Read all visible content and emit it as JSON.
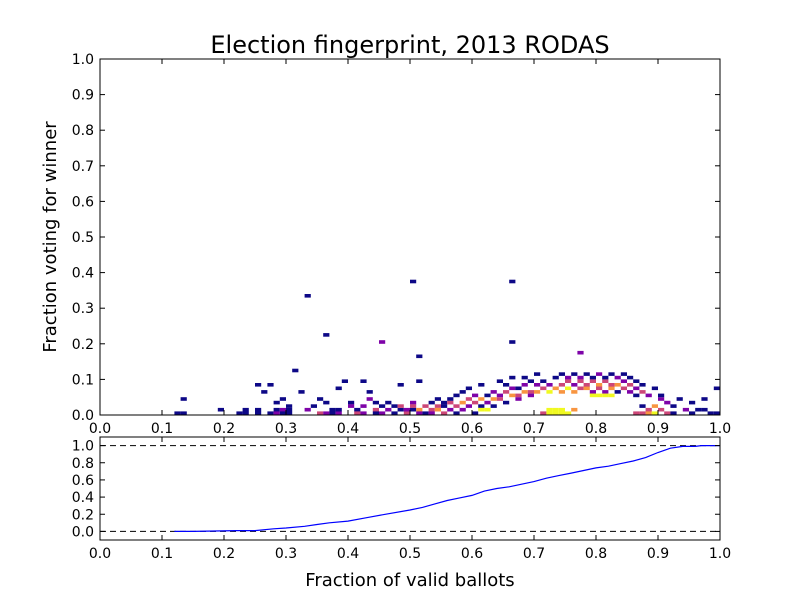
{
  "chart_data": [
    {
      "type": "heatmap",
      "title": "Election fingerprint, 2013 RODAS",
      "xlabel": "",
      "ylabel": "Fraction voting for winner",
      "xlim": [
        0.0,
        1.0
      ],
      "ylim": [
        0.0,
        1.0
      ],
      "x_ticks": [
        "0.0",
        "0.1",
        "0.2",
        "0.3",
        "0.4",
        "0.5",
        "0.6",
        "0.7",
        "0.8",
        "0.9",
        "1.0"
      ],
      "y_ticks": [
        "0.0",
        "0.1",
        "0.2",
        "0.3",
        "0.4",
        "0.5",
        "0.6",
        "0.7",
        "0.8",
        "0.9",
        "1.0"
      ],
      "colormap": [
        "#0d0887",
        "#7e03a8",
        "#cc4778",
        "#f89540",
        "#f0f921"
      ],
      "bin_width": 0.01,
      "cells": [
        [
          0.33,
          0.33,
          1
        ],
        [
          0.5,
          0.37,
          1
        ],
        [
          0.66,
          0.37,
          1
        ],
        [
          0.36,
          0.22,
          1
        ],
        [
          0.45,
          0.2,
          2
        ],
        [
          0.66,
          0.2,
          1
        ],
        [
          0.31,
          0.12,
          1
        ],
        [
          0.51,
          0.16,
          1
        ],
        [
          0.77,
          0.17,
          2
        ],
        [
          0.13,
          0.04,
          1
        ],
        [
          0.19,
          0.01,
          1
        ],
        [
          0.12,
          0.0,
          1
        ],
        [
          0.13,
          0.0,
          1
        ],
        [
          0.22,
          0.0,
          1
        ],
        [
          0.23,
          0.0,
          1
        ],
        [
          0.23,
          0.01,
          1
        ],
        [
          0.25,
          0.08,
          1
        ],
        [
          0.27,
          0.08,
          1
        ],
        [
          0.26,
          0.06,
          1
        ],
        [
          0.25,
          0.01,
          1
        ],
        [
          0.25,
          0.0,
          1
        ],
        [
          0.28,
          0.03,
          1
        ],
        [
          0.29,
          0.04,
          1
        ],
        [
          0.28,
          0.01,
          1
        ],
        [
          0.29,
          0.01,
          2
        ],
        [
          0.3,
          0.01,
          1
        ],
        [
          0.27,
          0.0,
          1
        ],
        [
          0.28,
          0.0,
          2
        ],
        [
          0.29,
          0.0,
          1
        ],
        [
          0.3,
          0.0,
          1
        ],
        [
          0.3,
          0.02,
          1
        ],
        [
          0.32,
          0.06,
          1
        ],
        [
          0.33,
          0.01,
          2
        ],
        [
          0.34,
          0.02,
          1
        ],
        [
          0.35,
          0.0,
          3
        ],
        [
          0.36,
          0.0,
          2
        ],
        [
          0.36,
          0.03,
          1
        ],
        [
          0.35,
          0.04,
          1
        ],
        [
          0.37,
          0.01,
          1
        ],
        [
          0.37,
          0.0,
          1
        ],
        [
          0.38,
          0.0,
          2
        ],
        [
          0.38,
          0.01,
          1
        ],
        [
          0.38,
          0.07,
          1
        ],
        [
          0.39,
          0.09,
          1
        ],
        [
          0.4,
          0.03,
          1
        ],
        [
          0.4,
          0.02,
          2
        ],
        [
          0.41,
          0.01,
          1
        ],
        [
          0.41,
          0.0,
          3
        ],
        [
          0.42,
          0.0,
          2
        ],
        [
          0.42,
          0.02,
          2
        ],
        [
          0.42,
          0.09,
          1
        ],
        [
          0.43,
          0.04,
          2
        ],
        [
          0.43,
          0.06,
          1
        ],
        [
          0.44,
          0.03,
          1
        ],
        [
          0.44,
          0.01,
          3
        ],
        [
          0.44,
          0.0,
          1
        ],
        [
          0.45,
          0.02,
          1
        ],
        [
          0.45,
          0.0,
          2
        ],
        [
          0.46,
          0.01,
          2
        ],
        [
          0.46,
          0.03,
          1
        ],
        [
          0.47,
          0.02,
          1
        ],
        [
          0.47,
          0.0,
          1
        ],
        [
          0.48,
          0.01,
          1
        ],
        [
          0.48,
          0.02,
          3
        ],
        [
          0.48,
          0.08,
          1
        ],
        [
          0.49,
          0.0,
          3
        ],
        [
          0.49,
          0.01,
          2
        ],
        [
          0.5,
          0.03,
          2
        ],
        [
          0.5,
          0.02,
          3
        ],
        [
          0.5,
          0.01,
          1
        ],
        [
          0.51,
          0.01,
          4
        ],
        [
          0.51,
          0.0,
          2
        ],
        [
          0.51,
          0.09,
          1
        ],
        [
          0.52,
          0.02,
          3
        ],
        [
          0.52,
          0.0,
          1
        ],
        [
          0.53,
          0.01,
          3
        ],
        [
          0.53,
          0.03,
          1
        ],
        [
          0.53,
          0.0,
          2
        ],
        [
          0.54,
          0.02,
          3
        ],
        [
          0.54,
          0.01,
          4
        ],
        [
          0.54,
          0.04,
          1
        ],
        [
          0.55,
          0.0,
          3
        ],
        [
          0.55,
          0.02,
          1
        ],
        [
          0.55,
          0.03,
          1
        ],
        [
          0.56,
          0.01,
          2
        ],
        [
          0.56,
          0.03,
          3
        ],
        [
          0.56,
          0.04,
          1
        ],
        [
          0.57,
          0.02,
          3
        ],
        [
          0.57,
          0.0,
          1
        ],
        [
          0.57,
          0.05,
          1
        ],
        [
          0.58,
          0.03,
          4
        ],
        [
          0.58,
          0.01,
          2
        ],
        [
          0.58,
          0.06,
          1
        ],
        [
          0.59,
          0.02,
          2
        ],
        [
          0.59,
          0.04,
          3
        ],
        [
          0.59,
          0.07,
          1
        ],
        [
          0.6,
          0.03,
          3
        ],
        [
          0.6,
          0.05,
          2
        ],
        [
          0.6,
          0.0,
          1
        ],
        [
          0.61,
          0.04,
          4
        ],
        [
          0.61,
          0.02,
          1
        ],
        [
          0.61,
          0.08,
          1
        ],
        [
          0.62,
          0.01,
          5
        ],
        [
          0.62,
          0.03,
          2
        ],
        [
          0.62,
          0.05,
          1
        ],
        [
          0.63,
          0.04,
          4
        ],
        [
          0.63,
          0.06,
          2
        ],
        [
          0.63,
          0.02,
          1
        ],
        [
          0.64,
          0.04,
          3
        ],
        [
          0.64,
          0.05,
          2
        ],
        [
          0.64,
          0.09,
          1
        ],
        [
          0.65,
          0.06,
          3
        ],
        [
          0.65,
          0.03,
          1
        ],
        [
          0.65,
          0.08,
          1
        ],
        [
          0.66,
          0.05,
          4
        ],
        [
          0.66,
          0.07,
          2
        ],
        [
          0.66,
          0.1,
          1
        ],
        [
          0.67,
          0.05,
          3
        ],
        [
          0.67,
          0.04,
          2
        ],
        [
          0.67,
          0.07,
          1
        ],
        [
          0.68,
          0.06,
          4
        ],
        [
          0.68,
          0.08,
          2
        ],
        [
          0.68,
          0.1,
          1
        ],
        [
          0.69,
          0.06,
          3
        ],
        [
          0.69,
          0.05,
          2
        ],
        [
          0.69,
          0.09,
          1
        ],
        [
          0.7,
          0.06,
          4
        ],
        [
          0.7,
          0.08,
          2
        ],
        [
          0.7,
          0.11,
          1
        ],
        [
          0.71,
          0.07,
          3
        ],
        [
          0.71,
          0.0,
          3
        ],
        [
          0.71,
          0.09,
          1
        ],
        [
          0.72,
          0.06,
          5
        ],
        [
          0.72,
          0.0,
          5
        ],
        [
          0.72,
          0.08,
          2
        ],
        [
          0.73,
          0.07,
          4
        ],
        [
          0.73,
          0.0,
          5
        ],
        [
          0.73,
          0.1,
          1
        ],
        [
          0.74,
          0.06,
          4
        ],
        [
          0.74,
          0.08,
          3
        ],
        [
          0.74,
          0.11,
          1
        ],
        [
          0.75,
          0.07,
          5
        ],
        [
          0.75,
          0.09,
          3
        ],
        [
          0.75,
          0.1,
          2
        ],
        [
          0.76,
          0.06,
          4
        ],
        [
          0.76,
          0.08,
          2
        ],
        [
          0.76,
          0.11,
          1
        ],
        [
          0.77,
          0.07,
          3
        ],
        [
          0.77,
          0.1,
          2
        ],
        [
          0.77,
          0.09,
          3
        ],
        [
          0.78,
          0.07,
          4
        ],
        [
          0.78,
          0.08,
          3
        ],
        [
          0.78,
          0.11,
          1
        ],
        [
          0.79,
          0.09,
          3
        ],
        [
          0.79,
          0.06,
          2
        ],
        [
          0.79,
          0.1,
          1
        ],
        [
          0.8,
          0.08,
          4
        ],
        [
          0.8,
          0.07,
          3
        ],
        [
          0.8,
          0.11,
          2
        ],
        [
          0.81,
          0.09,
          3
        ],
        [
          0.81,
          0.06,
          2
        ],
        [
          0.81,
          0.1,
          1
        ],
        [
          0.82,
          0.07,
          4
        ],
        [
          0.82,
          0.08,
          3
        ],
        [
          0.82,
          0.11,
          1
        ],
        [
          0.83,
          0.08,
          4
        ],
        [
          0.83,
          0.06,
          1
        ],
        [
          0.83,
          0.1,
          2
        ],
        [
          0.84,
          0.07,
          3
        ],
        [
          0.84,
          0.09,
          2
        ],
        [
          0.84,
          0.11,
          1
        ],
        [
          0.85,
          0.08,
          3
        ],
        [
          0.85,
          0.06,
          2
        ],
        [
          0.85,
          0.1,
          1
        ],
        [
          0.86,
          0.07,
          2
        ],
        [
          0.86,
          0.05,
          1
        ],
        [
          0.86,
          0.09,
          1
        ],
        [
          0.87,
          0.06,
          3
        ],
        [
          0.87,
          0.08,
          1
        ],
        [
          0.87,
          0.02,
          1
        ],
        [
          0.88,
          0.05,
          2
        ],
        [
          0.88,
          0.01,
          3
        ],
        [
          0.88,
          0.0,
          4
        ],
        [
          0.89,
          0.02,
          4
        ],
        [
          0.89,
          0.0,
          5
        ],
        [
          0.89,
          0.07,
          1
        ],
        [
          0.9,
          0.04,
          2
        ],
        [
          0.9,
          0.01,
          3
        ],
        [
          0.9,
          0.05,
          1
        ],
        [
          0.91,
          0.03,
          2
        ],
        [
          0.91,
          0.0,
          3
        ],
        [
          0.92,
          0.02,
          1
        ],
        [
          0.92,
          0.0,
          1
        ],
        [
          0.93,
          0.04,
          1
        ],
        [
          0.94,
          0.01,
          2
        ],
        [
          0.95,
          0.03,
          1
        ],
        [
          0.95,
          0.0,
          1
        ],
        [
          0.96,
          0.01,
          1
        ],
        [
          0.97,
          0.01,
          1
        ],
        [
          0.97,
          0.04,
          1
        ],
        [
          0.98,
          0.0,
          1
        ],
        [
          0.99,
          0.07,
          1
        ],
        [
          0.99,
          0.0,
          1
        ],
        [
          0.72,
          0.01,
          5
        ],
        [
          0.73,
          0.01,
          5
        ],
        [
          0.74,
          0.0,
          5
        ],
        [
          0.74,
          0.01,
          5
        ],
        [
          0.75,
          0.0,
          5
        ],
        [
          0.61,
          0.01,
          5
        ],
        [
          0.76,
          0.01,
          4
        ],
        [
          0.87,
          0.0,
          3
        ],
        [
          0.86,
          0.0,
          3
        ],
        [
          0.8,
          0.05,
          5
        ],
        [
          0.79,
          0.05,
          5
        ],
        [
          0.81,
          0.05,
          5
        ],
        [
          0.82,
          0.05,
          5
        ]
      ]
    },
    {
      "type": "line",
      "title": "",
      "xlabel": "Fraction of valid ballots",
      "ylabel": "",
      "xlim": [
        0.0,
        1.0
      ],
      "ylim": [
        -0.1,
        1.1
      ],
      "x_ticks": [
        "0.0",
        "0.1",
        "0.2",
        "0.3",
        "0.4",
        "0.5",
        "0.6",
        "0.7",
        "0.8",
        "0.9",
        "1.0"
      ],
      "y_ticks": [
        "0.0",
        "0.2",
        "0.4",
        "0.6",
        "0.8",
        "1.0"
      ],
      "reference_lines": [
        0.0,
        1.0
      ],
      "series": [
        {
          "color": "#0000ff",
          "x": [
            0.12,
            0.15,
            0.22,
            0.24,
            0.25,
            0.28,
            0.3,
            0.33,
            0.35,
            0.37,
            0.4,
            0.43,
            0.46,
            0.5,
            0.52,
            0.54,
            0.56,
            0.58,
            0.6,
            0.62,
            0.64,
            0.66,
            0.68,
            0.7,
            0.72,
            0.74,
            0.76,
            0.78,
            0.8,
            0.82,
            0.84,
            0.86,
            0.88,
            0.9,
            0.92,
            0.94,
            0.96,
            0.97,
            0.98,
            1.0
          ],
          "y": [
            0.0,
            0.0,
            0.01,
            0.01,
            0.01,
            0.03,
            0.04,
            0.06,
            0.08,
            0.1,
            0.12,
            0.16,
            0.2,
            0.25,
            0.28,
            0.32,
            0.36,
            0.39,
            0.42,
            0.47,
            0.5,
            0.52,
            0.55,
            0.58,
            0.62,
            0.65,
            0.68,
            0.71,
            0.74,
            0.76,
            0.79,
            0.82,
            0.86,
            0.92,
            0.97,
            0.99,
            0.99,
            1.0,
            1.0,
            1.0
          ]
        }
      ]
    }
  ],
  "figure": {
    "title": "Election fingerprint, 2013 RODAS",
    "ylabel": "Fraction voting for winner",
    "xlabel": "Fraction of valid ballots"
  }
}
